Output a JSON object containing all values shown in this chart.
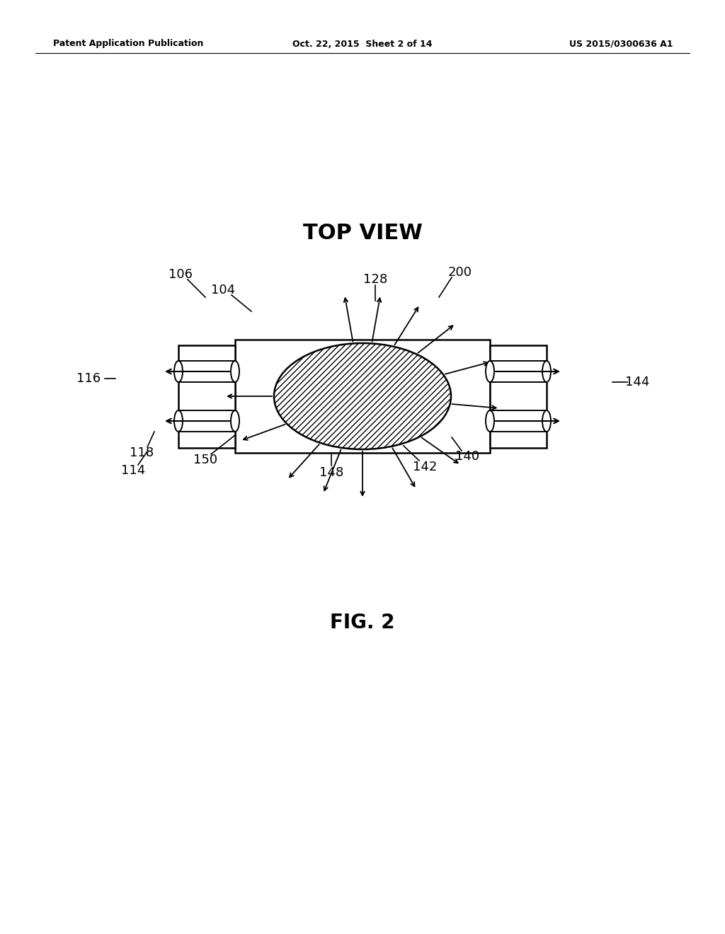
{
  "background_color": "#ffffff",
  "title_text": "TOP VIEW",
  "fig_caption": "FIG. 2",
  "header_left": "Patent Application Publication",
  "header_center": "Oct. 22, 2015  Sheet 2 of 14",
  "header_right": "US 2015/0300636 A1"
}
